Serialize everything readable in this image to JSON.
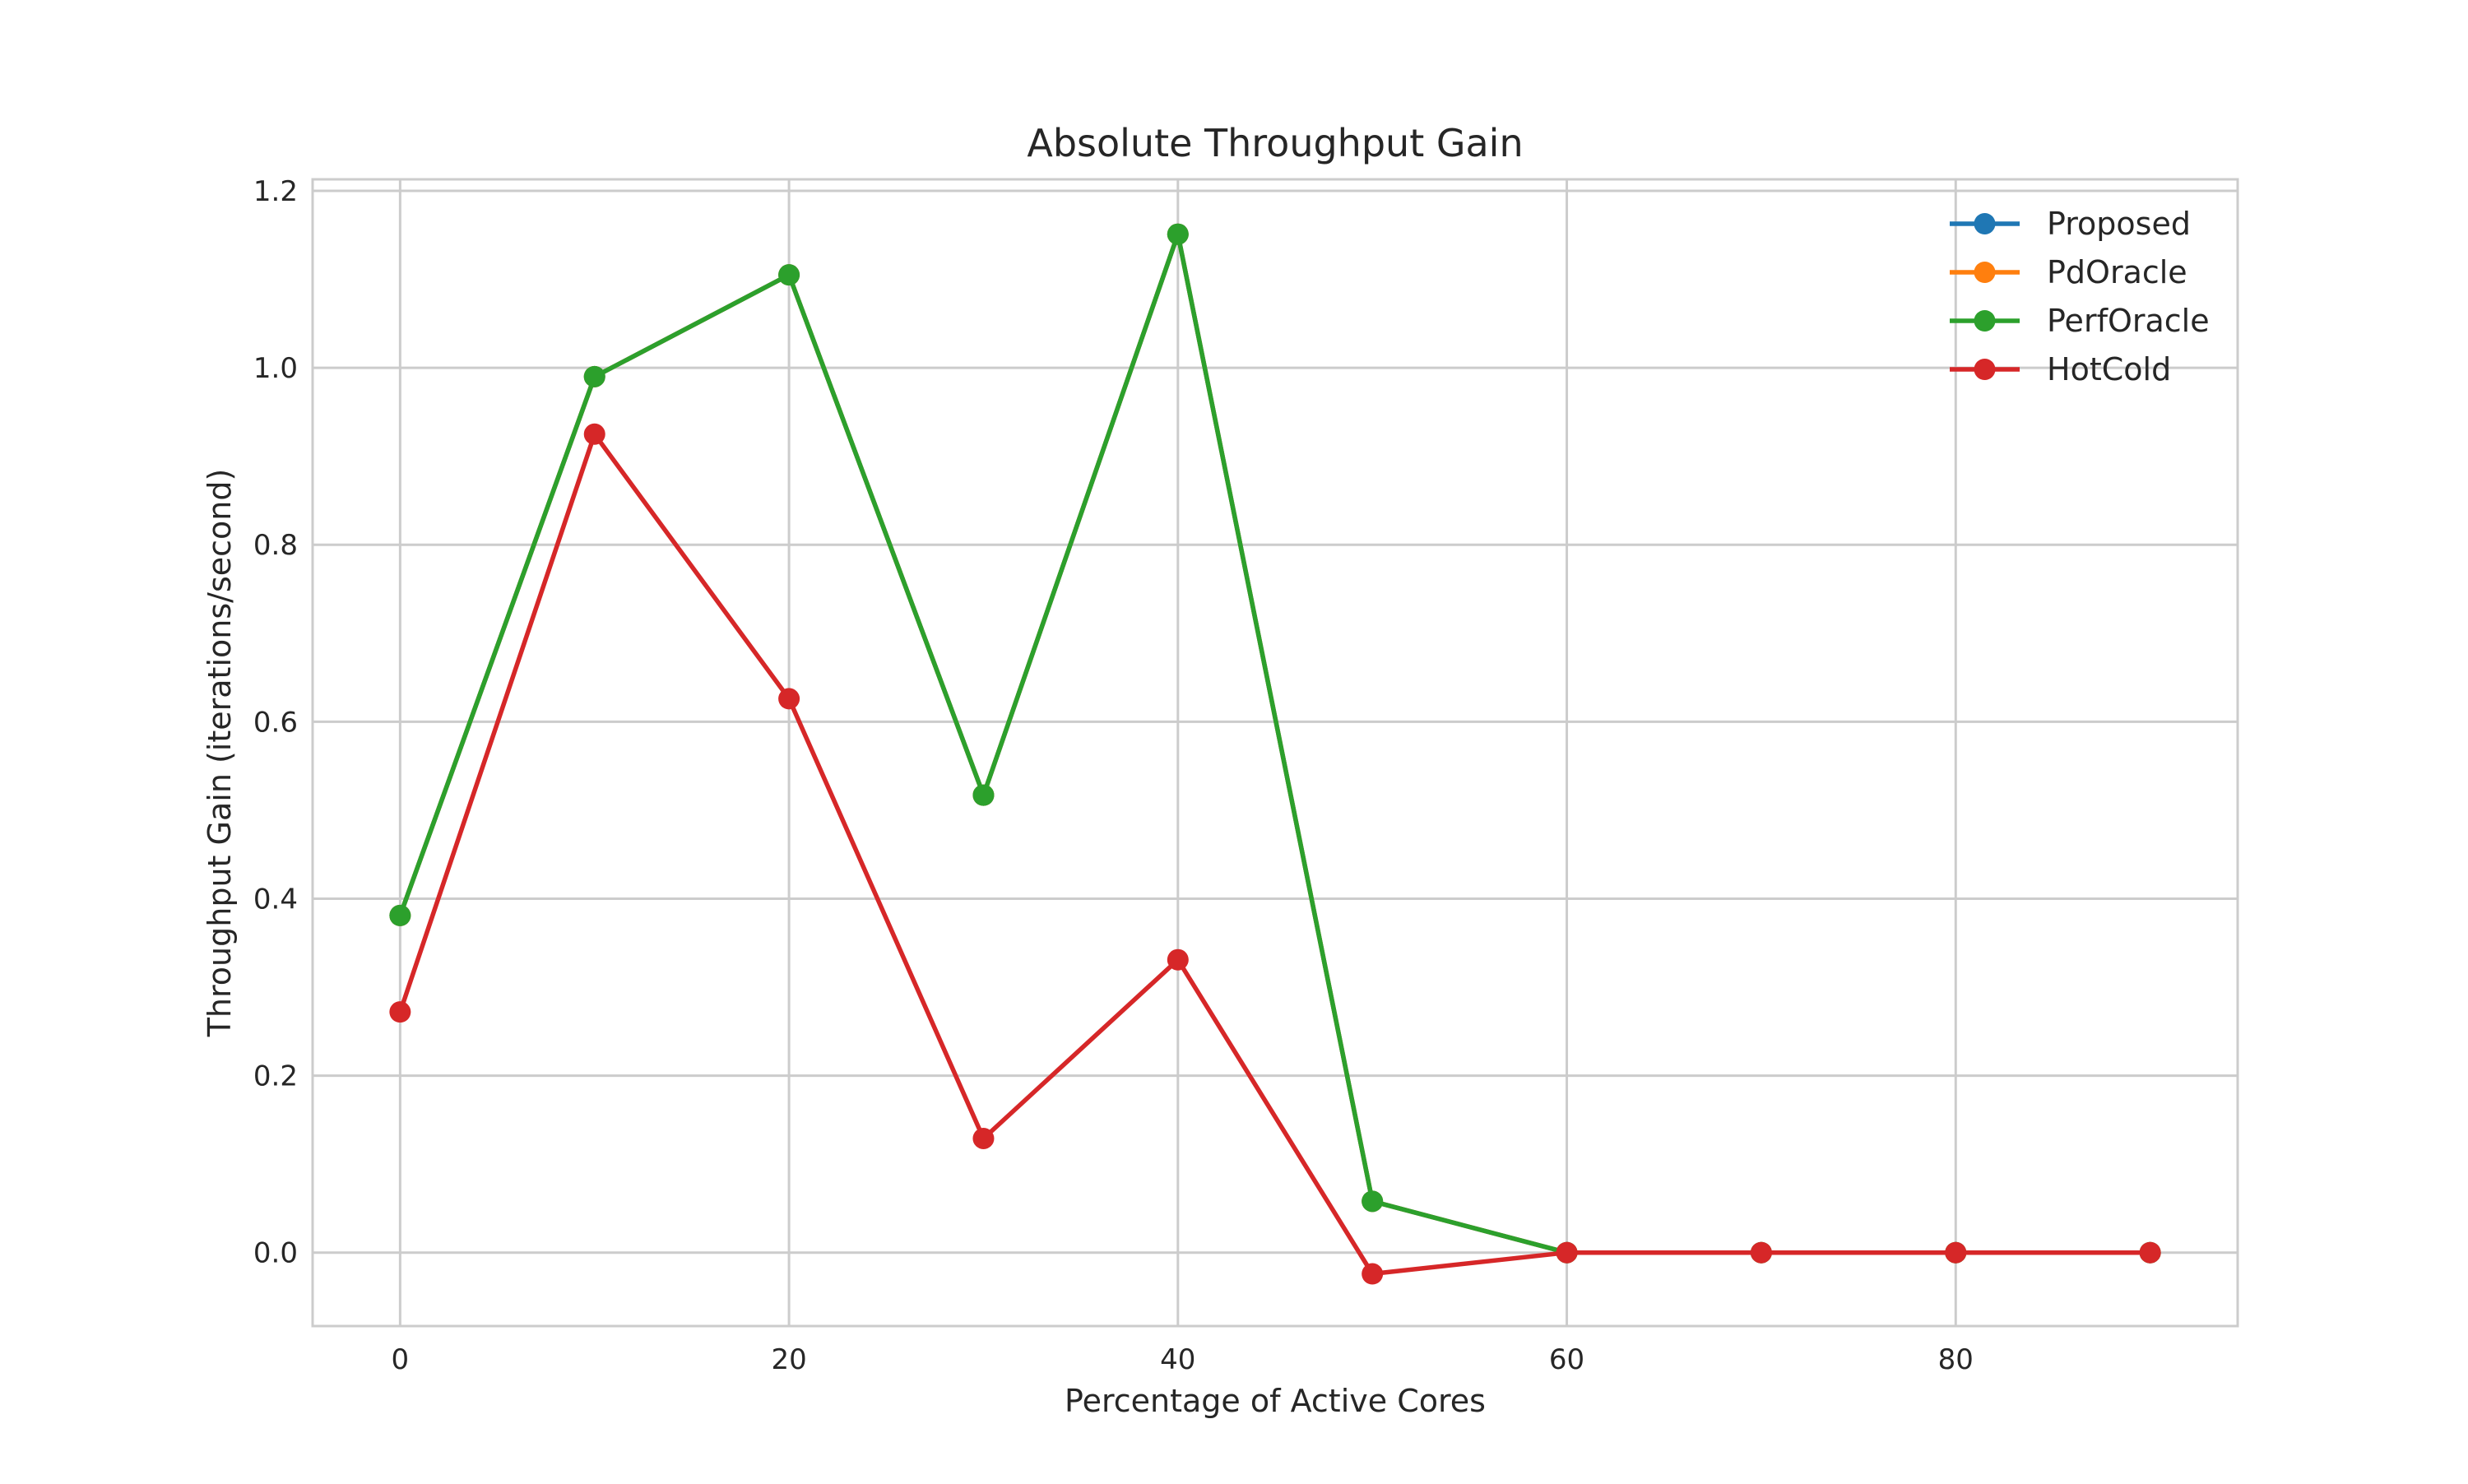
{
  "chart_data": {
    "type": "line",
    "title": "Absolute Throughput Gain",
    "xlabel": "Percentage of Active Cores",
    "ylabel": "Throughput Gain (iterations/second)",
    "x": [
      0,
      10,
      20,
      30,
      40,
      50,
      60,
      70,
      80,
      90
    ],
    "xlim": [
      -4.5,
      94.5
    ],
    "ylim": [
      -0.083,
      1.213
    ],
    "xticks": [
      0,
      20,
      40,
      60,
      80
    ],
    "yticks": [
      0.0,
      0.2,
      0.4,
      0.6,
      0.8,
      1.0,
      1.2
    ],
    "xtick_labels": [
      "0",
      "20",
      "40",
      "60",
      "80"
    ],
    "ytick_labels": [
      "0.0",
      "0.2",
      "0.4",
      "0.6",
      "0.8",
      "1.0",
      "1.2"
    ],
    "grid": true,
    "legend_position": "top-right",
    "series": [
      {
        "name": "Proposed",
        "color": "#1f77b4",
        "values": [
          0.381,
          0.99,
          1.105,
          0.517,
          1.151,
          0.058,
          0.0,
          0.0,
          0.0,
          0.0
        ]
      },
      {
        "name": "PdOracle",
        "color": "#ff7f0e",
        "values": [
          0.381,
          0.99,
          1.105,
          0.517,
          1.151,
          0.058,
          0.0,
          0.0,
          0.0,
          0.0
        ]
      },
      {
        "name": "PerfOracle",
        "color": "#2ca02c",
        "values": [
          0.381,
          0.99,
          1.105,
          0.517,
          1.151,
          0.058,
          0.0,
          0.0,
          0.0,
          0.0
        ]
      },
      {
        "name": "HotCold",
        "color": "#d62728",
        "values": [
          0.272,
          0.925,
          0.626,
          0.129,
          0.331,
          -0.024,
          0.0,
          0.0,
          0.0,
          0.0
        ]
      }
    ]
  }
}
